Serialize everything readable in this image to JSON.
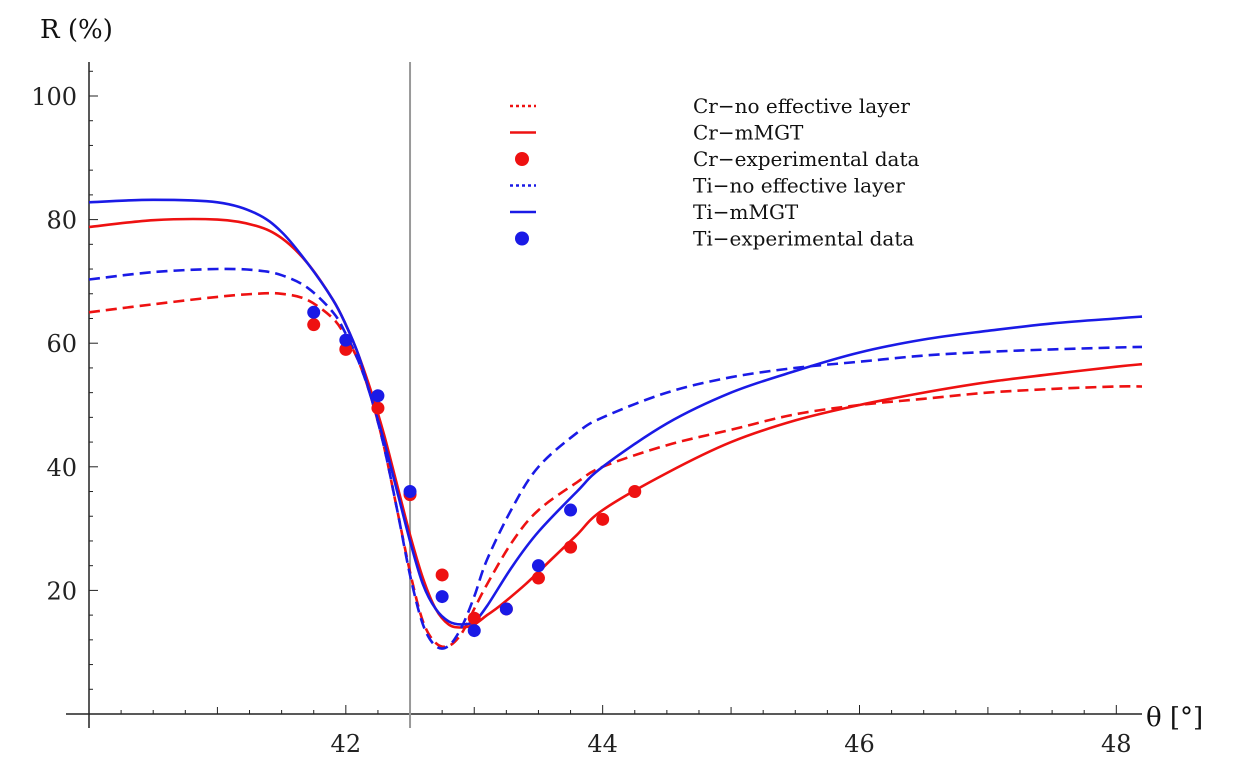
{
  "chart_data": {
    "type": "line",
    "ylabel": "R (%)",
    "xlabel": "θ [°]",
    "xlim": [
      40.0,
      48.2
    ],
    "ylim": [
      0,
      104
    ],
    "x_ticks": [
      42,
      44,
      46,
      48
    ],
    "y_ticks": [
      20,
      40,
      60,
      80,
      100
    ],
    "vertical_reference_line_x": 42.5,
    "grid": false,
    "legend_position": "top-center",
    "colors": {
      "cr": "#ee1111",
      "ti": "#1a1ae6",
      "reference_line": "#999999"
    },
    "series": [
      {
        "name": "Cr−no effective layer",
        "style": "dashed",
        "color": "#ee1111",
        "x": [
          40.0,
          40.5,
          41.0,
          41.3,
          41.5,
          41.7,
          41.9,
          42.0,
          42.1,
          42.2,
          42.3,
          42.4,
          42.5,
          42.6,
          42.7,
          42.8,
          42.9,
          43.0,
          43.1,
          43.3,
          43.5,
          43.8,
          44.0,
          44.5,
          45.0,
          45.5,
          46.0,
          46.5,
          47.0,
          47.5,
          48.0,
          48.2
        ],
        "y": [
          65.0,
          66.3,
          67.5,
          68.0,
          68.0,
          67.0,
          64.0,
          61.0,
          57.0,
          51.0,
          43.0,
          33.0,
          23.0,
          15.0,
          11.5,
          11.0,
          13.0,
          17.0,
          21.0,
          28.0,
          33.0,
          37.5,
          40.0,
          43.5,
          46.0,
          48.5,
          50.0,
          51.0,
          52.0,
          52.6,
          53.0,
          53.0
        ]
      },
      {
        "name": "Cr−mMGT",
        "style": "solid",
        "color": "#ee1111",
        "x": [
          40.0,
          40.5,
          41.0,
          41.3,
          41.5,
          41.7,
          41.9,
          42.0,
          42.1,
          42.2,
          42.3,
          42.4,
          42.5,
          42.6,
          42.7,
          42.8,
          42.9,
          43.0,
          43.1,
          43.2,
          43.4,
          43.6,
          43.8,
          44.0,
          44.5,
          45.0,
          45.5,
          46.0,
          46.5,
          47.0,
          47.5,
          48.0,
          48.2
        ],
        "y": [
          78.8,
          79.9,
          80.0,
          79.0,
          77.0,
          73.0,
          67.0,
          63.0,
          58.0,
          52.0,
          45.0,
          37.0,
          29.0,
          22.0,
          17.0,
          14.5,
          14.0,
          14.5,
          16.0,
          17.5,
          21.0,
          25.0,
          29.0,
          33.0,
          39.0,
          44.0,
          47.5,
          50.0,
          52.0,
          53.7,
          55.0,
          56.2,
          56.6
        ]
      },
      {
        "name": "Cr−experimental data",
        "style": "points",
        "color": "#ee1111",
        "x": [
          41.75,
          42.0,
          42.25,
          42.5,
          42.75,
          43.0,
          43.25,
          43.5,
          43.75,
          44.0,
          44.25
        ],
        "y": [
          63.0,
          59.0,
          49.5,
          35.5,
          22.5,
          15.5,
          17.0,
          22.0,
          27.0,
          31.5,
          36.0
        ]
      },
      {
        "name": "Ti−no effective layer",
        "style": "dashed",
        "color": "#1a1ae6",
        "x": [
          40.0,
          40.5,
          41.0,
          41.3,
          41.5,
          41.7,
          41.9,
          42.0,
          42.1,
          42.2,
          42.3,
          42.4,
          42.5,
          42.6,
          42.7,
          42.8,
          42.9,
          43.0,
          43.1,
          43.3,
          43.5,
          43.8,
          44.0,
          44.5,
          45.0,
          45.5,
          46.0,
          46.5,
          47.0,
          47.5,
          48.0,
          48.2
        ],
        "y": [
          70.3,
          71.5,
          72.0,
          71.8,
          71.0,
          69.0,
          65.0,
          61.5,
          57.0,
          51.0,
          43.0,
          33.0,
          22.5,
          14.5,
          11.0,
          11.0,
          14.0,
          19.0,
          25.0,
          33.5,
          40.0,
          45.5,
          48.0,
          52.0,
          54.5,
          56.0,
          57.0,
          58.0,
          58.6,
          59.0,
          59.3,
          59.4
        ]
      },
      {
        "name": "Ti−mMGT",
        "style": "solid",
        "color": "#1a1ae6",
        "x": [
          40.0,
          40.5,
          41.0,
          41.3,
          41.5,
          41.7,
          41.9,
          42.0,
          42.1,
          42.2,
          42.3,
          42.4,
          42.5,
          42.6,
          42.7,
          42.8,
          42.9,
          43.0,
          43.1,
          43.3,
          43.5,
          43.8,
          44.0,
          44.5,
          45.0,
          45.5,
          46.0,
          46.5,
          47.0,
          47.5,
          48.0,
          48.2
        ],
        "y": [
          82.8,
          83.2,
          82.8,
          81.0,
          78.0,
          73.0,
          67.0,
          63.0,
          58.0,
          51.0,
          44.0,
          36.0,
          28.0,
          21.0,
          17.0,
          15.0,
          14.5,
          15.0,
          17.5,
          24.0,
          29.5,
          36.0,
          40.0,
          47.0,
          52.0,
          55.5,
          58.5,
          60.6,
          62.0,
          63.2,
          64.0,
          64.3
        ]
      },
      {
        "name": "Ti−experimental data",
        "style": "points",
        "color": "#1a1ae6",
        "x": [
          41.75,
          42.0,
          42.25,
          42.5,
          42.75,
          43.0,
          43.25,
          43.5,
          43.75
        ],
        "y": [
          65.0,
          60.5,
          51.5,
          36.0,
          19.0,
          13.5,
          17.0,
          24.0,
          33.0
        ]
      }
    ]
  }
}
